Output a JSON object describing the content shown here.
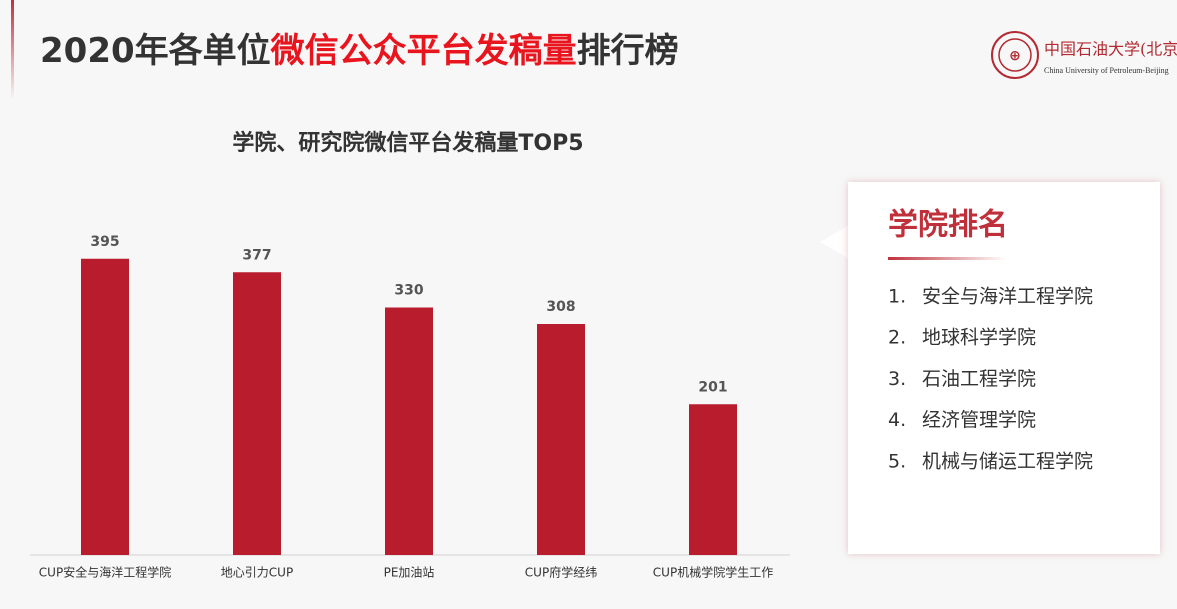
{
  "header": {
    "title_parts": [
      {
        "text": "2020年各单位",
        "color": "#333333"
      },
      {
        "text": "微信公众平台发稿量",
        "color": "#e8141e"
      },
      {
        "text": "排行榜",
        "color": "#333333"
      }
    ]
  },
  "logo": {
    "name": "中国石油大学(北京)",
    "english": "China University of Petroleum-Beijing"
  },
  "chart_data": {
    "type": "bar",
    "title": "学院、研究院微信平台发稿量TOP5",
    "categories": [
      "CUP安全与海洋工程学院",
      "地心引力CUP",
      "PE加油站",
      "CUP府学经纬",
      "CUP机械学院学生工作"
    ],
    "values": [
      395,
      377,
      330,
      308,
      201
    ],
    "color": "#b91c2c"
  },
  "ranking": {
    "title": "学院排名",
    "items": [
      {
        "number": "1.",
        "name": "安全与海洋工程学院"
      },
      {
        "number": "2.",
        "name": "地球科学学院"
      },
      {
        "number": "3.",
        "name": "石油工程学院"
      },
      {
        "number": "4.",
        "name": "经济管理学院"
      },
      {
        "number": "5.",
        "name": "机械与储运工程学院"
      }
    ]
  }
}
